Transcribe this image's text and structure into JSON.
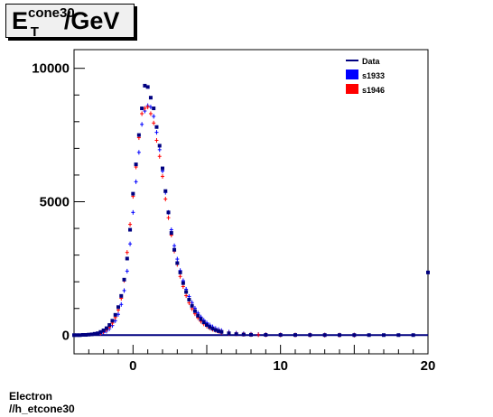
{
  "title": {
    "base": "E",
    "subscript": "T",
    "superscript": "cone30",
    "suffix": "/GeV"
  },
  "footer": {
    "line1": "Electron",
    "line2": "//h_etcone30"
  },
  "chart_data": {
    "type": "scatter",
    "x_ticks": [
      0,
      10,
      20
    ],
    "y_ticks": [
      0,
      5000,
      10000
    ],
    "xlim": [
      -4,
      20
    ],
    "ylim": [
      -700,
      10700
    ],
    "grid": false,
    "legend_position": "top-right",
    "legend": [
      {
        "label": "Data",
        "color": "#000080",
        "marker": "line"
      },
      {
        "label": "s1933",
        "color": "#0000ff",
        "marker": "box"
      },
      {
        "label": "s1946",
        "color": "#ff0000",
        "marker": "box"
      }
    ],
    "series": [
      {
        "name": "Data",
        "color": "#000080",
        "marker": "mark",
        "x": [
          -4,
          -3.8,
          -3.6,
          -3.4,
          -3.2,
          -3.0,
          -2.8,
          -2.6,
          -2.4,
          -2.2,
          -2.0,
          -1.8,
          -1.6,
          -1.4,
          -1.2,
          -1.0,
          -0.8,
          -0.6,
          -0.4,
          -0.2,
          0.0,
          0.2,
          0.4,
          0.6,
          0.8,
          1.0,
          1.2,
          1.4,
          1.6,
          1.8,
          2.0,
          2.2,
          2.4,
          2.6,
          2.8,
          3.0,
          3.2,
          3.4,
          3.6,
          3.8,
          4.0,
          4.2,
          4.4,
          4.6,
          4.8,
          5.0,
          5.2,
          5.4,
          5.6,
          5.8,
          6.0,
          6.5,
          7.0,
          7.5,
          8.0,
          9.0,
          10.0,
          11.0,
          12.0,
          13.0,
          14.0,
          15.0,
          16.0,
          17.0,
          18.0,
          19.0,
          20.0
        ],
        "y": [
          0,
          0,
          0,
          10,
          10,
          20,
          30,
          50,
          70,
          120,
          180,
          260,
          380,
          540,
          760,
          1050,
          1470,
          2080,
          2870,
          3950,
          5300,
          6400,
          7500,
          8500,
          9350,
          9300,
          8900,
          8500,
          7800,
          7100,
          6250,
          5400,
          4600,
          3830,
          3200,
          2700,
          2350,
          1950,
          1620,
          1330,
          1100,
          900,
          730,
          600,
          480,
          380,
          300,
          240,
          190,
          150,
          120,
          70,
          40,
          25,
          15,
          10,
          8,
          6,
          5,
          4,
          3,
          3,
          2,
          2,
          2,
          2,
          2350
        ]
      },
      {
        "name": "s1933",
        "color": "#0000ff",
        "marker": "plus",
        "x": [
          -2.2,
          -2.0,
          -1.8,
          -1.6,
          -1.4,
          -1.2,
          -1.0,
          -0.8,
          -0.6,
          -0.4,
          -0.2,
          0.0,
          0.2,
          0.4,
          0.6,
          0.8,
          1.0,
          1.2,
          1.4,
          1.6,
          1.8,
          2.0,
          2.2,
          2.4,
          2.6,
          2.8,
          3.0,
          3.2,
          3.4,
          3.6,
          3.8,
          4.0,
          4.2,
          4.4,
          4.6,
          4.8,
          5.0,
          5.2,
          5.4,
          5.6,
          5.8,
          6.0,
          6.5,
          7.0,
          7.5,
          8.0,
          8.5,
          9.0,
          10.0,
          11.0,
          12.0,
          13.0,
          14.0,
          15.0
        ],
        "y": [
          60,
          100,
          150,
          240,
          360,
          540,
          780,
          1150,
          1670,
          2400,
          3420,
          4600,
          5750,
          6850,
          7900,
          8400,
          8600,
          8550,
          8200,
          7600,
          6950,
          6150,
          5350,
          4600,
          3950,
          3350,
          2850,
          2420,
          2040,
          1720,
          1450,
          1220,
          1010,
          830,
          680,
          560,
          460,
          380,
          310,
          250,
          210,
          170,
          110,
          75,
          50,
          35,
          25,
          18,
          12,
          8,
          6,
          5,
          4,
          3
        ]
      },
      {
        "name": "s1946",
        "color": "#ff0000",
        "marker": "plus",
        "x": [
          -2.2,
          -2.0,
          -1.8,
          -1.6,
          -1.4,
          -1.2,
          -1.0,
          -0.8,
          -0.6,
          -0.4,
          -0.2,
          0.0,
          0.2,
          0.4,
          0.6,
          0.8,
          1.0,
          1.2,
          1.4,
          1.6,
          1.8,
          2.0,
          2.2,
          2.4,
          2.6,
          2.8,
          3.0,
          3.2,
          3.4,
          3.6,
          3.8,
          4.0,
          4.2,
          4.4,
          4.6,
          4.8,
          5.0,
          5.2,
          5.4,
          5.6,
          5.8,
          6.0,
          6.5,
          7.0,
          7.5,
          8.0,
          8.5,
          9.0,
          10.0,
          11.0,
          12.0,
          13.0,
          14.0,
          15.0
        ],
        "y": [
          80,
          130,
          200,
          300,
          450,
          660,
          940,
          1380,
          2050,
          3100,
          4150,
          5200,
          6300,
          7400,
          8300,
          8500,
          8550,
          8300,
          7950,
          7300,
          6700,
          5950,
          5100,
          4400,
          3750,
          3150,
          2650,
          2200,
          1820,
          1480,
          1210,
          990,
          800,
          650,
          520,
          420,
          340,
          270,
          220,
          180,
          140,
          110,
          70,
          45,
          30,
          20,
          15,
          10,
          7,
          5,
          4,
          3,
          3,
          2
        ]
      }
    ]
  }
}
